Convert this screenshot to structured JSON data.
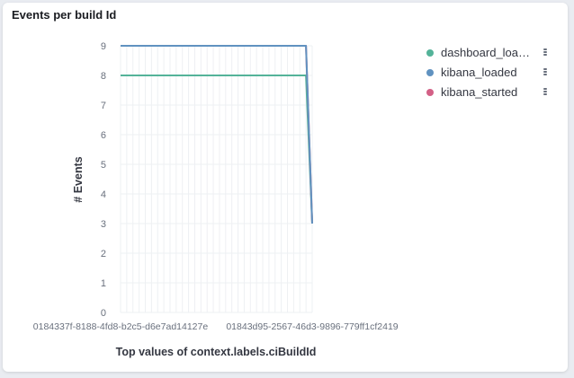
{
  "panel": {
    "title": "Events per build Id"
  },
  "chart_data": {
    "type": "line",
    "title": "Events per build Id",
    "xlabel": "Top values of context.labels.ciBuildId",
    "ylabel": "# Events",
    "ylim": [
      0,
      9
    ],
    "yticks": [
      0,
      1,
      2,
      3,
      4,
      5,
      6,
      7,
      8,
      9
    ],
    "x_tick_labels": [
      "0184337f-8188-4fd8-b2c5-d6e7ad14127e",
      "01843d95-2567-46d3-9896-779ff1cf2419"
    ],
    "x_count": 32,
    "grid": true,
    "legend_position": "right",
    "series": [
      {
        "name": "dashboard_loaded",
        "display_label": "dashboard_load...",
        "color": "#54b399",
        "values": [
          8,
          8,
          8,
          8,
          8,
          8,
          8,
          8,
          8,
          8,
          8,
          8,
          8,
          8,
          8,
          8,
          8,
          8,
          8,
          8,
          8,
          8,
          8,
          8,
          8,
          8,
          8,
          8,
          8,
          8,
          8,
          3
        ]
      },
      {
        "name": "kibana_loaded",
        "display_label": "kibana_loaded",
        "color": "#6092c0",
        "values": [
          9,
          9,
          9,
          9,
          9,
          9,
          9,
          9,
          9,
          9,
          9,
          9,
          9,
          9,
          9,
          9,
          9,
          9,
          9,
          9,
          9,
          9,
          9,
          9,
          9,
          9,
          9,
          9,
          9,
          9,
          9,
          3
        ]
      },
      {
        "name": "kibana_started",
        "display_label": "kibana_started",
        "color": "#d36086",
        "values": [
          9,
          9,
          9,
          9,
          9,
          9,
          9,
          9,
          9,
          9,
          9,
          9,
          9,
          9,
          9,
          9,
          9,
          9,
          9,
          9,
          9,
          9,
          9,
          9,
          9,
          9,
          9,
          9,
          9,
          9,
          9,
          3
        ]
      }
    ]
  }
}
